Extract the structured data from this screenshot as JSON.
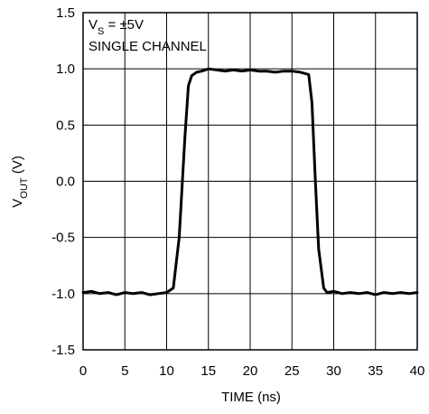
{
  "chart_data": {
    "type": "line",
    "xlabel": "TIME (ns)",
    "ylabel": {
      "main": "V",
      "sub": "OUT",
      "unit": " (V)"
    },
    "xlim": [
      0,
      40
    ],
    "ylim": [
      -1.5,
      1.5
    ],
    "xticks": [
      "0",
      "5",
      "10",
      "15",
      "20",
      "25",
      "30",
      "35",
      "40"
    ],
    "yticks": [
      "1.5",
      "1.0",
      "0.5",
      "0.0",
      "-0.5",
      "-1.0",
      "-1.5"
    ],
    "grid": true,
    "annotations": [
      {
        "main": "V",
        "sub": "S",
        "rest": " = ±5V"
      },
      {
        "text": "SINGLE CHANNEL"
      }
    ],
    "series": [
      {
        "x": [
          0,
          1,
          2,
          3,
          4,
          5,
          6,
          7,
          8,
          9,
          10,
          10.8,
          11.5,
          12.2,
          12.6,
          13.0,
          13.6,
          14.2,
          15,
          16,
          17,
          18,
          19,
          20,
          21,
          22,
          23,
          24,
          25,
          26,
          27.0,
          27.4,
          27.8,
          28.2,
          28.8,
          29.2,
          30,
          31,
          32,
          33,
          34,
          35,
          36,
          37,
          38,
          39,
          40
        ],
        "y": [
          -0.99,
          -0.98,
          -1.0,
          -0.99,
          -1.01,
          -0.99,
          -1.0,
          -0.99,
          -1.01,
          -1.0,
          -0.99,
          -0.95,
          -0.5,
          0.4,
          0.85,
          0.94,
          0.97,
          0.98,
          1.0,
          0.99,
          0.98,
          0.99,
          0.98,
          0.99,
          0.98,
          0.98,
          0.97,
          0.98,
          0.98,
          0.97,
          0.95,
          0.7,
          0.0,
          -0.6,
          -0.95,
          -0.99,
          -0.98,
          -1.0,
          -0.99,
          -1.0,
          -0.99,
          -1.01,
          -0.99,
          -1.0,
          -0.99,
          -1.0,
          -0.99
        ]
      }
    ]
  }
}
